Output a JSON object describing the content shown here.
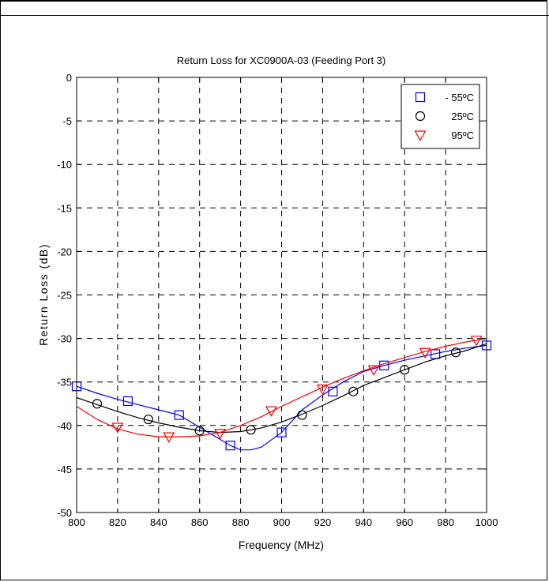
{
  "chart_data": {
    "type": "line",
    "title": "Return Loss for XC0900A-03 (Feeding Port 3)",
    "xlabel": "Frequency (MHz)",
    "ylabel": "Return Loss (dB)",
    "xlim": [
      800,
      1000
    ],
    "ylim": [
      -50,
      0
    ],
    "xticks": [
      800,
      820,
      840,
      860,
      880,
      900,
      920,
      940,
      960,
      980,
      1000
    ],
    "yticks": [
      0,
      -5,
      -10,
      -15,
      -20,
      -25,
      -30,
      -35,
      -40,
      -45,
      -50
    ],
    "grid": true,
    "grid_style": "dashed",
    "legend_position": "top-right",
    "series": [
      {
        "name": "- 55ºC",
        "color": "#0000ff",
        "marker": "square",
        "x": [
          800,
          810,
          820,
          830,
          840,
          850,
          860,
          870,
          875,
          880,
          885,
          890,
          900,
          910,
          920,
          930,
          940,
          950,
          960,
          970,
          980,
          990,
          1000
        ],
        "y": [
          -35.5,
          -36.3,
          -37,
          -37.6,
          -38.2,
          -38.8,
          -40.2,
          -41.6,
          -42.3,
          -42.8,
          -42.8,
          -42.5,
          -40.8,
          -38.2,
          -36.5,
          -35,
          -33.8,
          -33.1,
          -32.5,
          -32,
          -31.5,
          -31.1,
          -30.8
        ],
        "markers_x": [
          800,
          825,
          850,
          875,
          900,
          925,
          950,
          975,
          1000
        ],
        "markers_y": [
          -35.5,
          -37.2,
          -38.8,
          -42.3,
          -40.8,
          -36.1,
          -33.1,
          -31.8,
          -30.8
        ]
      },
      {
        "name": "25ºC",
        "color": "#000000",
        "marker": "circle",
        "x": [
          800,
          810,
          820,
          830,
          840,
          850,
          860,
          870,
          880,
          890,
          900,
          910,
          920,
          930,
          940,
          950,
          960,
          970,
          980,
          990,
          1000
        ],
        "y": [
          -36.8,
          -37.6,
          -38.4,
          -39.1,
          -39.7,
          -40.2,
          -40.6,
          -40.8,
          -40.7,
          -40.3,
          -39.6,
          -38.7,
          -37.7,
          -36.6,
          -35.4,
          -34.5,
          -33.6,
          -32.7,
          -32,
          -31.4,
          -30.6
        ],
        "markers_x": [
          810,
          835,
          860,
          885,
          910,
          935,
          960,
          985
        ],
        "markers_y": [
          -37.5,
          -39.3,
          -40.6,
          -40.5,
          -38.8,
          -36.1,
          -33.6,
          -31.6
        ]
      },
      {
        "name": "95ºC",
        "color": "#ff0000",
        "marker": "triangle-down",
        "x": [
          800,
          810,
          820,
          830,
          840,
          850,
          860,
          870,
          880,
          890,
          900,
          910,
          920,
          930,
          940,
          950,
          960,
          970,
          980,
          990,
          1000
        ],
        "y": [
          -37.8,
          -39.3,
          -40.4,
          -41,
          -41.3,
          -41.3,
          -41.2,
          -40.8,
          -40,
          -39,
          -37.8,
          -36.7,
          -35.6,
          -34.6,
          -33.7,
          -32.9,
          -32.2,
          -31.5,
          -30.9,
          -30.4,
          -30
        ],
        "markers_x": [
          820,
          845,
          870,
          895,
          920,
          945,
          970,
          995
        ],
        "markers_y": [
          -40.2,
          -41.3,
          -40.9,
          -38.3,
          -35.8,
          -33.6,
          -31.6,
          -30.2
        ]
      }
    ]
  }
}
